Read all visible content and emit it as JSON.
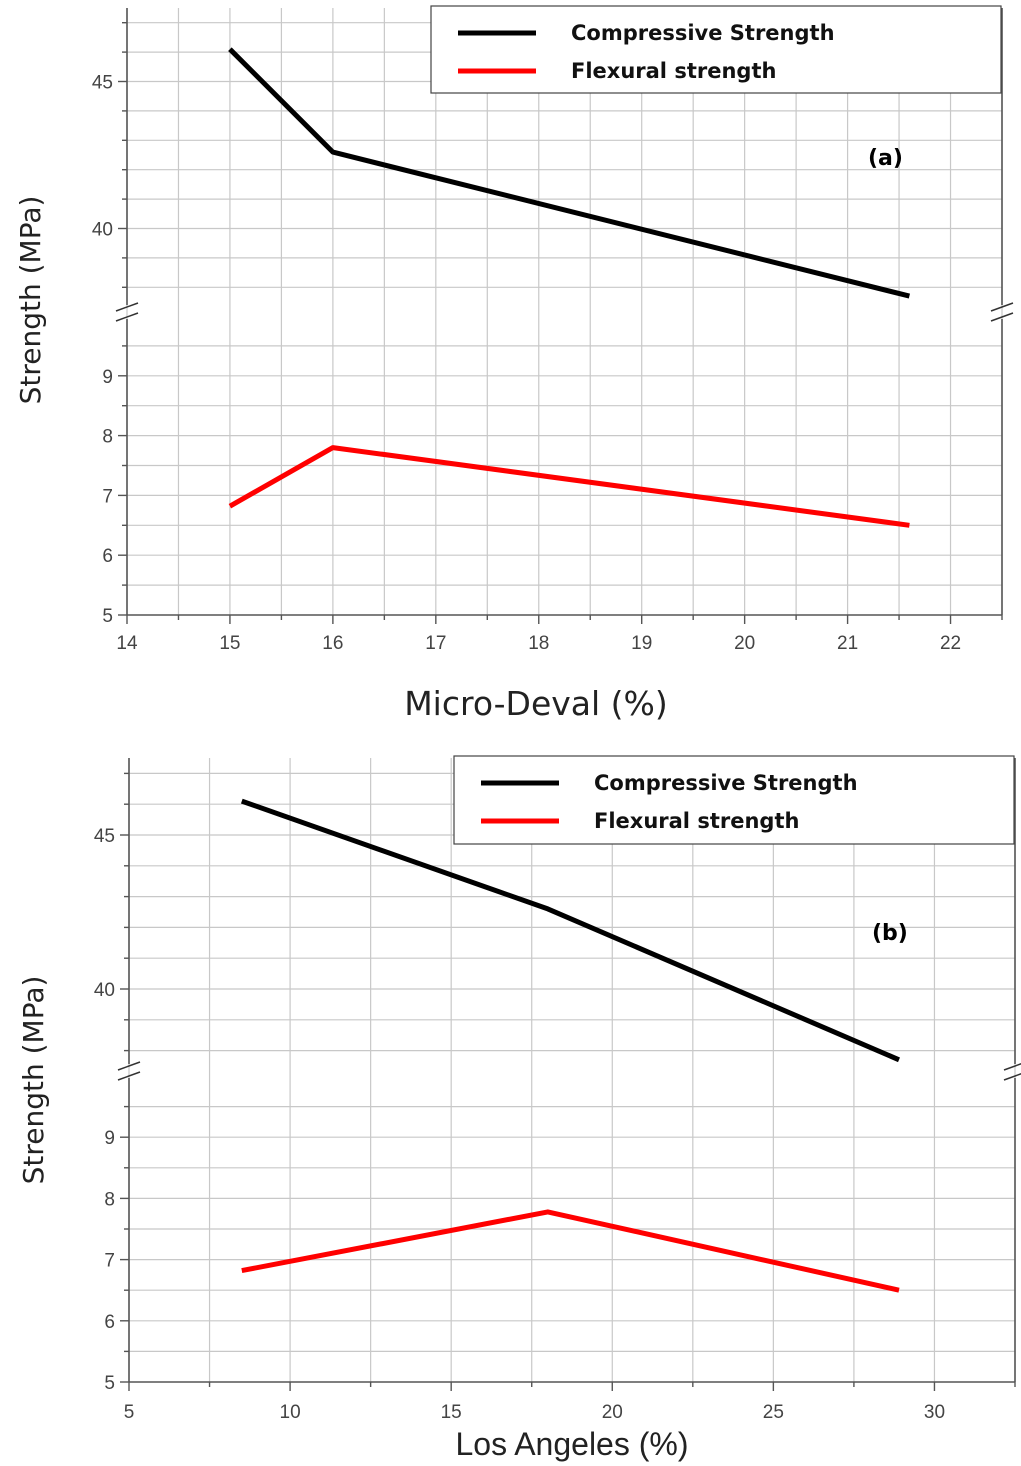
{
  "chart_data": [
    {
      "type": "line",
      "panel_label": "(a)",
      "xlabel": "Micro-Deval (%)",
      "ylabel": "Strength (MPa)",
      "xlim": [
        14,
        22.5
      ],
      "x_ticks": [
        14,
        15,
        16,
        17,
        18,
        19,
        20,
        21,
        22
      ],
      "y_broken": true,
      "y_upper": {
        "lim": [
          37.5,
          47.5
        ],
        "ticks": [
          40,
          45
        ]
      },
      "y_lower": {
        "lim": [
          5,
          10
        ],
        "ticks": [
          5,
          6,
          7,
          8,
          9
        ]
      },
      "grid": true,
      "legend_position": "top-right",
      "series": [
        {
          "name": "Compressive Strength",
          "color": "#000000",
          "x": [
            15,
            16,
            21.6
          ],
          "y": [
            46.1,
            42.6,
            37.7
          ]
        },
        {
          "name": "Flexural strength",
          "color": "#ff0000",
          "x": [
            15,
            16,
            21.6
          ],
          "y": [
            6.82,
            7.8,
            6.5
          ]
        }
      ]
    },
    {
      "type": "line",
      "panel_label": "(b)",
      "xlabel": "Los Angeles (%)",
      "ylabel": "Strength (MPa)",
      "xlim": [
        5,
        32.5
      ],
      "x_ticks": [
        5,
        10,
        15,
        20,
        25,
        30
      ],
      "y_broken": true,
      "y_upper": {
        "lim": [
          37.5,
          47.5
        ],
        "ticks": [
          40,
          45
        ]
      },
      "y_lower": {
        "lim": [
          5,
          10
        ],
        "ticks": [
          5,
          6,
          7,
          8,
          9
        ]
      },
      "grid": true,
      "legend_position": "top-right",
      "series": [
        {
          "name": "Compressive Strength",
          "color": "#000000",
          "x": [
            8.5,
            18,
            28.9
          ],
          "y": [
            46.1,
            42.6,
            37.7
          ]
        },
        {
          "name": "Flexural strength",
          "color": "#ff0000",
          "x": [
            8.5,
            18,
            28.9
          ],
          "y": [
            6.82,
            7.78,
            6.5
          ]
        }
      ]
    }
  ]
}
